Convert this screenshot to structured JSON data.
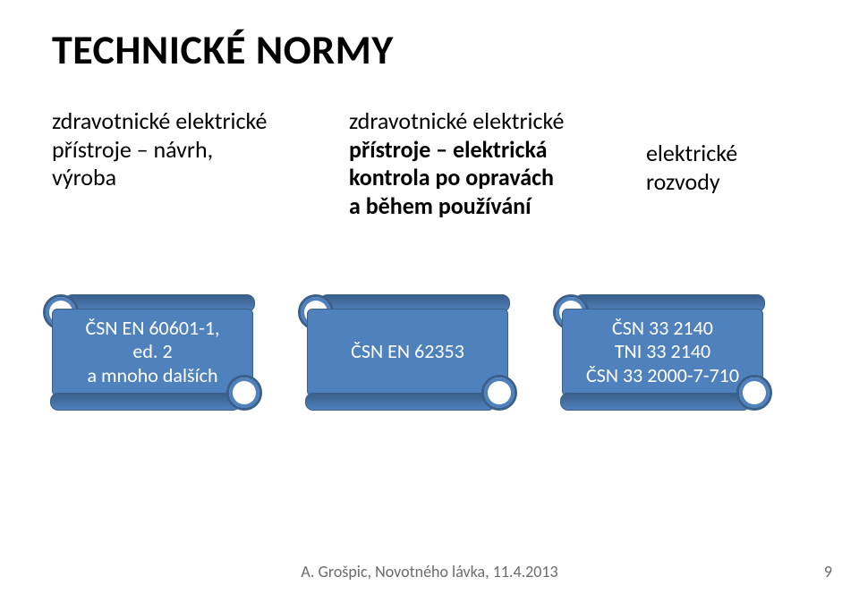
{
  "title": "TECHNICKÉ NORMY",
  "columns": {
    "col1": {
      "line1": "zdravotnické elektrické",
      "line2": "přístroje – návrh,",
      "line3": "výroba"
    },
    "col2": {
      "line1": "zdravotnické elektrické",
      "line2": "přístroje – elektrická",
      "line3": "kontrola po opravách",
      "line4": "a během používání"
    },
    "col3": {
      "line1": "elektrické rozvody"
    }
  },
  "scrolls": {
    "s1": {
      "line1": "ČSN EN 60601-1,",
      "line2": " ed. 2",
      "line3": "a mnoho dalších"
    },
    "s2": {
      "line1": "ČSN EN 62353"
    },
    "s3": {
      "line1": "ČSN 33 2140",
      "line2": "TNI 33 2140",
      "line3": "ČSN 33 2000-7-710"
    }
  },
  "footer": "A. Grošpic, Novotného lávka, 11.4.2013",
  "pageNumber": "9",
  "colors": {
    "scrollFill": "#4f81bd",
    "scrollDark": "#3a5f8a",
    "scrollCurlBorder": "#3a5f8a",
    "background": "#ffffff",
    "text": "#000000",
    "footerText": "#6b6b6b"
  },
  "fonts": {
    "titleSize": 46,
    "bodySize": 26,
    "scrollSize": 22,
    "footerSize": 18
  }
}
